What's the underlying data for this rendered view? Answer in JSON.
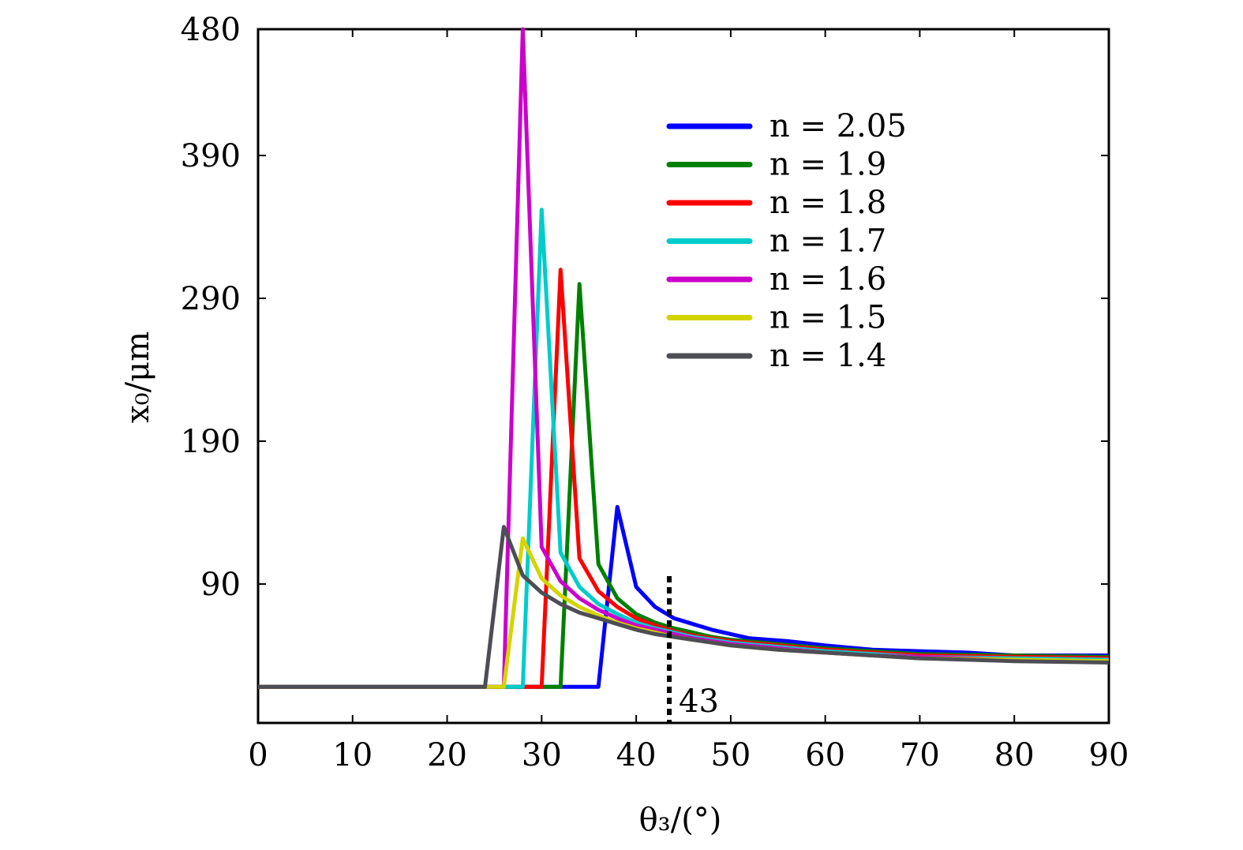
{
  "chart_data": {
    "type": "line",
    "xlabel": "θ₃/(°)",
    "ylabel": "x₀/μm",
    "xlim": [
      0,
      90
    ],
    "ylim": [
      10,
      480
    ],
    "xticks": [
      0,
      10,
      20,
      30,
      40,
      50,
      60,
      70,
      80,
      90
    ],
    "yticks": [
      90,
      190,
      290,
      390,
      480
    ],
    "grid": false,
    "legend_position": "top-right",
    "annotation": {
      "label": "43",
      "x": 43.5
    },
    "series": [
      {
        "name": "n = 2.05",
        "color": "#0000ff",
        "points": [
          [
            0,
            18
          ],
          [
            36,
            18
          ],
          [
            38,
            144
          ],
          [
            40,
            88
          ],
          [
            42,
            74
          ],
          [
            44,
            66
          ],
          [
            46,
            62
          ],
          [
            48,
            58
          ],
          [
            50,
            55
          ],
          [
            52,
            52
          ],
          [
            56,
            50
          ],
          [
            60,
            47
          ],
          [
            65,
            44
          ],
          [
            70,
            43
          ],
          [
            75,
            42
          ],
          [
            80,
            40
          ],
          [
            90,
            40
          ]
        ]
      },
      {
        "name": "n = 1.9",
        "color": "#008000",
        "points": [
          [
            0,
            18
          ],
          [
            32,
            18
          ],
          [
            34,
            300
          ],
          [
            36,
            104
          ],
          [
            38,
            80
          ],
          [
            40,
            69
          ],
          [
            42,
            63
          ],
          [
            44,
            59
          ],
          [
            46,
            56
          ],
          [
            48,
            53
          ],
          [
            50,
            51
          ],
          [
            55,
            48
          ],
          [
            60,
            45
          ],
          [
            65,
            43
          ],
          [
            70,
            41
          ],
          [
            80,
            40
          ],
          [
            90,
            39
          ]
        ]
      },
      {
        "name": "n = 1.8",
        "color": "#ff0000",
        "points": [
          [
            0,
            18
          ],
          [
            30,
            18
          ],
          [
            32,
            310
          ],
          [
            34,
            108
          ],
          [
            36,
            85
          ],
          [
            38,
            74
          ],
          [
            40,
            66
          ],
          [
            42,
            61
          ],
          [
            44,
            57
          ],
          [
            46,
            54
          ],
          [
            48,
            52
          ],
          [
            50,
            50
          ],
          [
            55,
            47
          ],
          [
            60,
            44
          ],
          [
            65,
            42
          ],
          [
            70,
            40
          ],
          [
            80,
            39
          ],
          [
            90,
            38
          ]
        ]
      },
      {
        "name": "n = 1.7",
        "color": "#00cccc",
        "points": [
          [
            0,
            18
          ],
          [
            28,
            18
          ],
          [
            30,
            352
          ],
          [
            32,
            112
          ],
          [
            34,
            88
          ],
          [
            36,
            76
          ],
          [
            38,
            69
          ],
          [
            40,
            63
          ],
          [
            42,
            59
          ],
          [
            44,
            56
          ],
          [
            46,
            53
          ],
          [
            48,
            51
          ],
          [
            50,
            49
          ],
          [
            55,
            46
          ],
          [
            60,
            43
          ],
          [
            65,
            41
          ],
          [
            70,
            39
          ],
          [
            80,
            38
          ],
          [
            90,
            37
          ]
        ]
      },
      {
        "name": "n = 1.6",
        "color": "#cc00cc",
        "points": [
          [
            0,
            18
          ],
          [
            26,
            18
          ],
          [
            28,
            480
          ],
          [
            30,
            116
          ],
          [
            32,
            92
          ],
          [
            34,
            80
          ],
          [
            36,
            72
          ],
          [
            38,
            66
          ],
          [
            40,
            61
          ],
          [
            42,
            58
          ],
          [
            44,
            55
          ],
          [
            46,
            52
          ],
          [
            48,
            50
          ],
          [
            50,
            48
          ],
          [
            55,
            45
          ],
          [
            60,
            42
          ],
          [
            65,
            40
          ],
          [
            70,
            39
          ],
          [
            80,
            37
          ],
          [
            90,
            36
          ]
        ]
      },
      {
        "name": "n = 1.5",
        "color": "#d4d400",
        "points": [
          [
            0,
            18
          ],
          [
            26,
            18
          ],
          [
            28,
            122
          ],
          [
            30,
            94
          ],
          [
            32,
            82
          ],
          [
            34,
            74
          ],
          [
            36,
            68
          ],
          [
            38,
            63
          ],
          [
            40,
            59
          ],
          [
            42,
            56
          ],
          [
            44,
            53
          ],
          [
            46,
            51
          ],
          [
            48,
            49
          ],
          [
            50,
            47
          ],
          [
            55,
            44
          ],
          [
            60,
            42
          ],
          [
            65,
            40
          ],
          [
            70,
            38
          ],
          [
            80,
            37
          ],
          [
            90,
            36
          ]
        ]
      },
      {
        "name": "n = 1.4",
        "color": "#4d4d55",
        "points": [
          [
            0,
            18
          ],
          [
            24,
            18
          ],
          [
            26,
            130
          ],
          [
            28,
            96
          ],
          [
            30,
            84
          ],
          [
            32,
            76
          ],
          [
            34,
            70
          ],
          [
            36,
            66
          ],
          [
            38,
            62
          ],
          [
            40,
            58
          ],
          [
            42,
            55
          ],
          [
            44,
            53
          ],
          [
            46,
            51
          ],
          [
            48,
            49
          ],
          [
            50,
            47
          ],
          [
            55,
            44
          ],
          [
            60,
            42
          ],
          [
            65,
            40
          ],
          [
            70,
            38
          ],
          [
            80,
            36
          ],
          [
            90,
            35
          ]
        ]
      }
    ]
  }
}
